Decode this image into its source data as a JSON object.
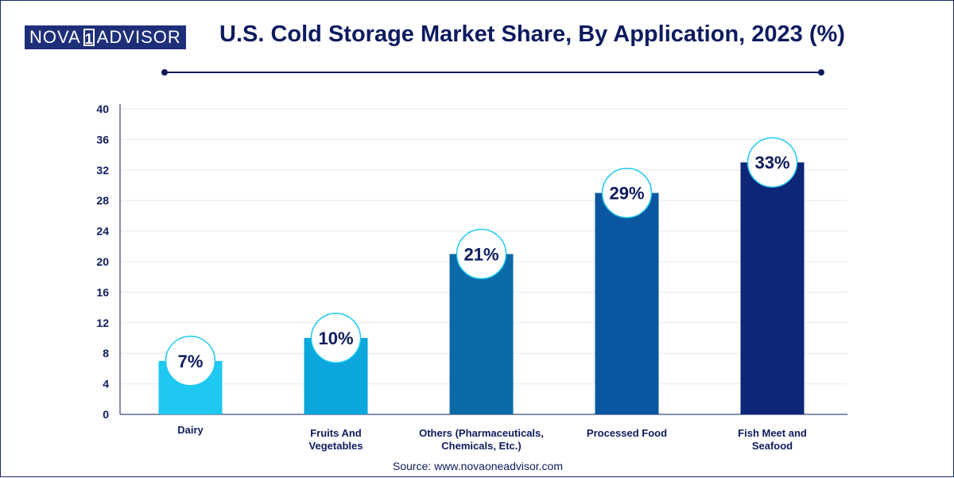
{
  "brand": {
    "logo_left": "NOVA",
    "logo_mark": "1",
    "logo_right": "ADVISOR"
  },
  "colors": {
    "title": "#0d1b5e",
    "bars": [
      "#1ec8f0",
      "#0aa6dc",
      "#0a6aa8",
      "#0a56a0",
      "#0d2678"
    ]
  },
  "source": "Source: www.novaoneadvisor.com",
  "chart_data": {
    "type": "bar",
    "title": "U.S. Cold Storage Market Share, By Application, 2023 (%)",
    "categories": [
      [
        "Dairy"
      ],
      [
        "Fruits And",
        "Vegetables"
      ],
      [
        "Others (Pharmaceuticals,",
        "Chemicals, Etc.)"
      ],
      [
        "Processed Food"
      ],
      [
        "Fish Meet and",
        "Seafood"
      ]
    ],
    "values": [
      7,
      10,
      21,
      29,
      33
    ],
    "value_labels": [
      "7%",
      "10%",
      "21%",
      "29%",
      "33%"
    ],
    "ylim": [
      0,
      40
    ],
    "yticks": [
      0,
      4,
      8,
      12,
      16,
      20,
      24,
      28,
      32,
      36,
      40
    ],
    "grid": true,
    "legend": "none"
  }
}
